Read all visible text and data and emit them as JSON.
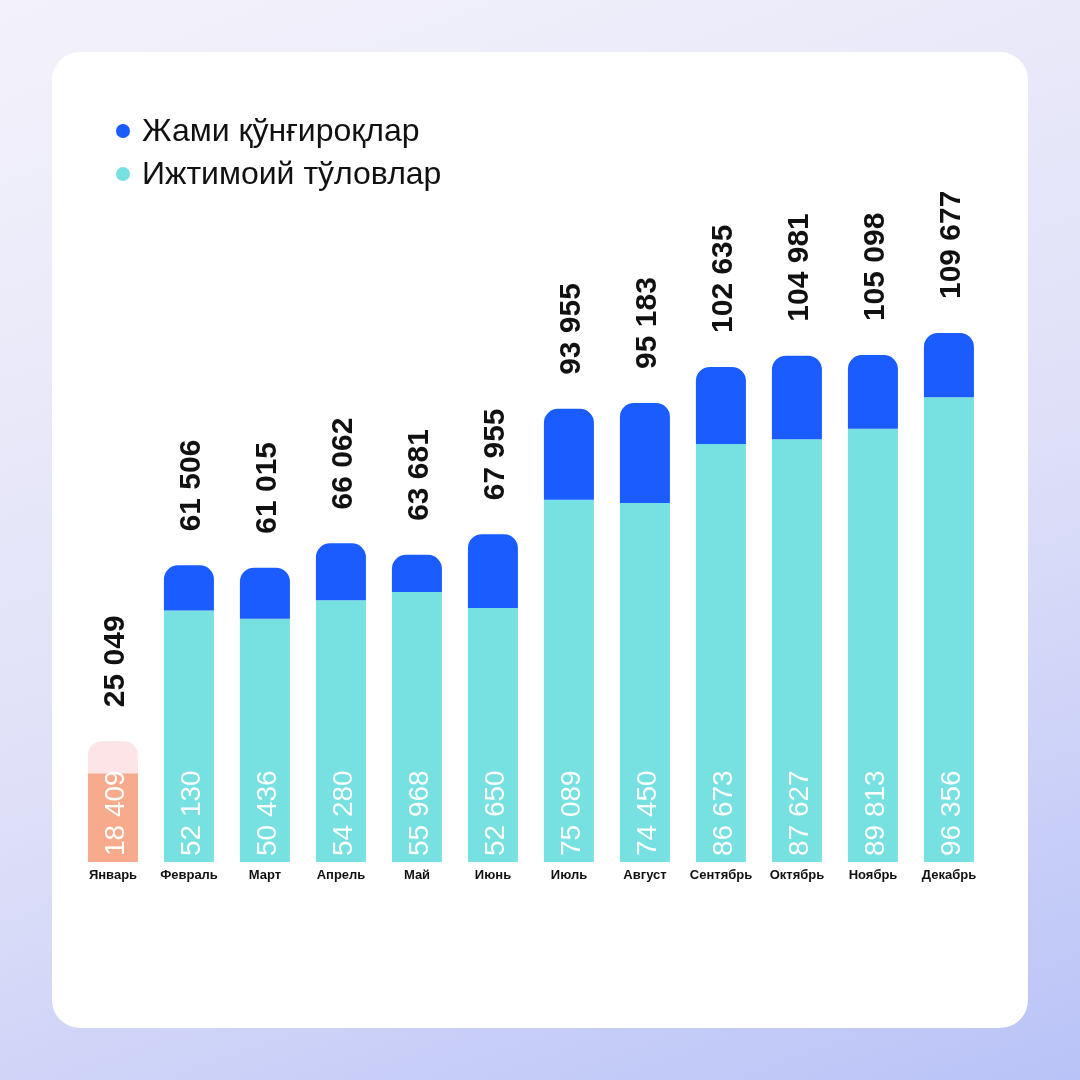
{
  "chart_data": {
    "type": "bar",
    "stacked": true,
    "categories": [
      "Январь",
      "Февраль",
      "Март",
      "Апрель",
      "Май",
      "Июнь",
      "Июль",
      "Август",
      "Сентябрь",
      "Октябрь",
      "Ноябрь",
      "Декабрь"
    ],
    "series": [
      {
        "name": "Ижтимоий тўловлар",
        "color": "#77e0e1",
        "colors": [
          "#f8ab8c",
          "#77e0e1",
          "#77e0e1",
          "#77e0e1",
          "#77e0e1",
          "#77e0e1",
          "#77e0e1",
          "#77e0e1",
          "#77e0e1",
          "#77e0e1",
          "#77e0e1",
          "#77e0e1"
        ],
        "values": [
          18409,
          52130,
          50436,
          54280,
          55968,
          52650,
          75089,
          74450,
          86673,
          87627,
          89813,
          96356
        ],
        "value_labels": [
          "18 409",
          "52 130",
          "50 436",
          "54 280",
          "55 968",
          "52 650",
          "75 089",
          "74 450",
          "86 673",
          "87 627",
          "89 813",
          "96 356"
        ]
      },
      {
        "name": "Жами қўнғироқлар",
        "color": "#1a5cff",
        "colors": [
          "#fce4e7",
          "#1a5cff",
          "#1a5cff",
          "#1a5cff",
          "#1a5cff",
          "#1a5cff",
          "#1a5cff",
          "#1a5cff",
          "#1a5cff",
          "#1a5cff",
          "#1a5cff",
          "#1a5cff"
        ],
        "values": [
          6640,
          9376,
          10579,
          11782,
          7713,
          15305,
          18866,
          20733,
          15962,
          17354,
          15285,
          13321
        ]
      }
    ],
    "totals": [
      "25 049",
      "61 506",
      "61 015",
      "66 062",
      "63 681",
      "67 955",
      "93 955",
      "95 183",
      "102 635",
      "104 981",
      "105 098",
      "109 677"
    ],
    "tick_labels": "x",
    "legend": "top left"
  }
}
